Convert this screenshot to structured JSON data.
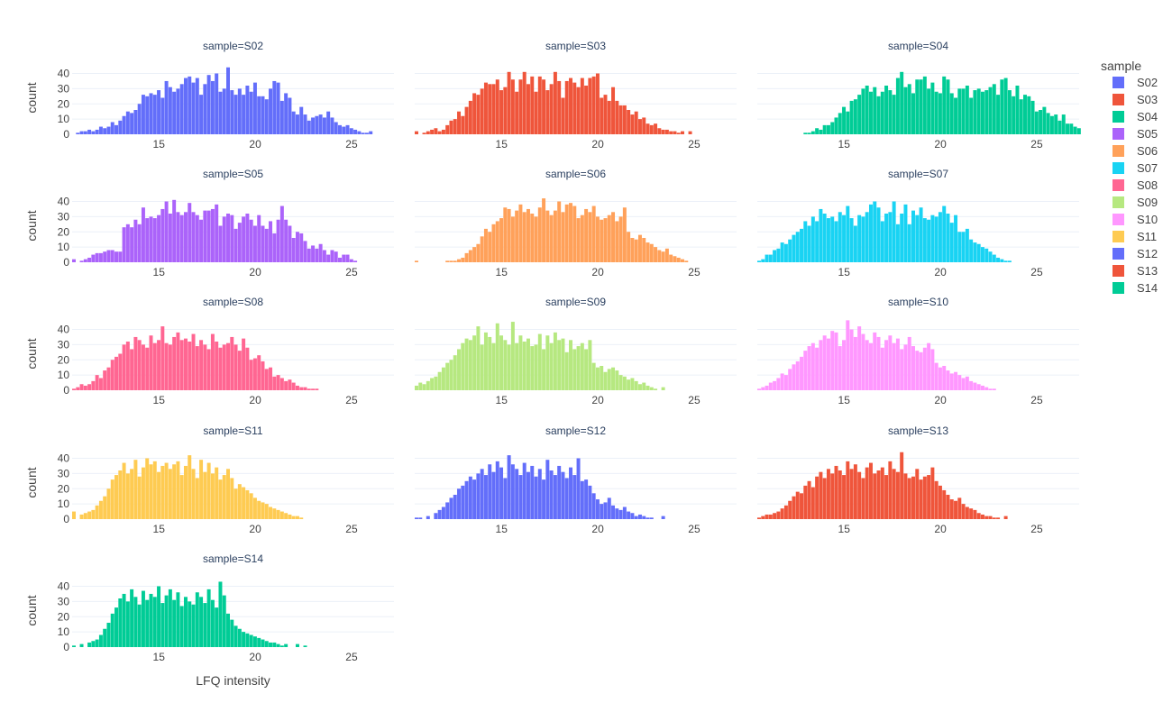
{
  "chart_data": {
    "type": "histogram",
    "facet_variable": "sample",
    "x_axis_label": "LFQ intensity",
    "y_axis_label": "count",
    "bin_start": 10.5,
    "bin_width": 0.2,
    "xlim": [
      10.5,
      27.2
    ],
    "ylim": [
      0,
      48
    ],
    "x_ticks": [
      10,
      15,
      20,
      25
    ],
    "y_ticks": [
      0,
      10,
      20,
      30,
      40
    ],
    "grid": true,
    "legend_position": "right",
    "facet_titles": [
      "sample=S02",
      "sample=S03",
      "sample=S04",
      "sample=S05",
      "sample=S06",
      "sample=S07",
      "sample=S08",
      "sample=S09",
      "sample=S10",
      "sample=S11",
      "sample=S12",
      "sample=S13",
      "sample=S14"
    ],
    "series": [
      {
        "name": "S02",
        "color": "#636efa",
        "counts": [
          0,
          1,
          2,
          2,
          3,
          2,
          3,
          5,
          4,
          5,
          8,
          6,
          9,
          12,
          15,
          14,
          16,
          20,
          26,
          25,
          27,
          26,
          29,
          24,
          35,
          31,
          28,
          30,
          33,
          37,
          38,
          34,
          37,
          26,
          33,
          39,
          35,
          40,
          28,
          30,
          44,
          29,
          26,
          30,
          26,
          32,
          28,
          34,
          25,
          25,
          23,
          30,
          35,
          34,
          22,
          27,
          24,
          15,
          13,
          18,
          13,
          9,
          11,
          12,
          13,
          11,
          15,
          11,
          8,
          6,
          5,
          6,
          4,
          3,
          2,
          1,
          1,
          2,
          0,
          0,
          0,
          0,
          0,
          0
        ],
        "x_ranges": []
      },
      {
        "name": "S03",
        "color": "#ef553b",
        "counts": [
          2,
          0,
          1,
          2,
          3,
          4,
          2,
          3,
          6,
          9,
          10,
          15,
          12,
          18,
          22,
          27,
          26,
          30,
          34,
          33,
          33,
          36,
          29,
          31,
          41,
          36,
          28,
          36,
          41,
          33,
          38,
          28,
          38,
          36,
          29,
          33,
          41,
          35,
          24,
          35,
          37,
          34,
          31,
          37,
          32,
          37,
          38,
          40,
          24,
          26,
          22,
          31,
          22,
          19,
          19,
          16,
          13,
          15,
          10,
          11,
          7,
          6,
          7,
          4,
          3,
          3,
          2,
          2,
          1,
          2,
          0,
          2,
          0,
          0,
          0,
          0,
          0,
          0,
          0,
          0,
          0,
          0,
          0,
          0
        ],
        "x_ranges": []
      },
      {
        "name": "S04",
        "color": "#00cc96",
        "counts": [
          0,
          0,
          0,
          0,
          0,
          0,
          0,
          0,
          0,
          0,
          0,
          0,
          1,
          1,
          2,
          4,
          3,
          6,
          6,
          8,
          11,
          14,
          18,
          15,
          22,
          23,
          26,
          30,
          32,
          28,
          31,
          25,
          28,
          32,
          29,
          26,
          37,
          41,
          31,
          33,
          27,
          36,
          36,
          38,
          30,
          34,
          28,
          27,
          38,
          36,
          27,
          24,
          30,
          30,
          32,
          24,
          29,
          30,
          28,
          29,
          31,
          33,
          26,
          36,
          37,
          29,
          25,
          32,
          23,
          26,
          25,
          22,
          15,
          16,
          18,
          14,
          12,
          13,
          9,
          13,
          7,
          7,
          5,
          4
        ],
        "x_ranges": []
      },
      {
        "name": "S05",
        "color": "#ab63fa",
        "counts": [
          2,
          0,
          1,
          2,
          3,
          5,
          6,
          6,
          7,
          8,
          8,
          7,
          7,
          23,
          25,
          23,
          28,
          25,
          36,
          29,
          30,
          29,
          31,
          35,
          40,
          32,
          41,
          33,
          31,
          33,
          39,
          33,
          31,
          28,
          34,
          34,
          35,
          38,
          24,
          30,
          32,
          31,
          22,
          26,
          30,
          32,
          28,
          24,
          31,
          24,
          22,
          27,
          19,
          28,
          37,
          28,
          24,
          16,
          20,
          19,
          14,
          9,
          11,
          9,
          12,
          8,
          5,
          8,
          7,
          3,
          5,
          5,
          2,
          1,
          0,
          0,
          0,
          0,
          0,
          0,
          0,
          0,
          0,
          0
        ],
        "x_ranges": []
      },
      {
        "name": "S06",
        "color": "#ffa15a",
        "counts": [
          1,
          0,
          0,
          0,
          0,
          0,
          0,
          0,
          1,
          1,
          1,
          2,
          3,
          6,
          8,
          10,
          12,
          17,
          22,
          20,
          25,
          27,
          29,
          36,
          35,
          30,
          34,
          38,
          33,
          35,
          32,
          30,
          36,
          42,
          34,
          31,
          34,
          40,
          33,
          38,
          39,
          37,
          29,
          31,
          35,
          33,
          37,
          30,
          28,
          29,
          31,
          33,
          27,
          30,
          36,
          20,
          16,
          15,
          18,
          16,
          13,
          12,
          10,
          8,
          7,
          9,
          5,
          4,
          3,
          2,
          1,
          0,
          0,
          0,
          0,
          0,
          0,
          0,
          0,
          0,
          0,
          0,
          0,
          0
        ],
        "x_ranges": []
      },
      {
        "name": "S07",
        "color": "#19d3f3",
        "counts": [
          1,
          2,
          5,
          5,
          8,
          9,
          13,
          12,
          15,
          18,
          20,
          22,
          27,
          24,
          30,
          27,
          35,
          32,
          29,
          30,
          27,
          33,
          31,
          37,
          29,
          24,
          31,
          30,
          33,
          38,
          40,
          36,
          27,
          32,
          33,
          40,
          25,
          32,
          38,
          25,
          34,
          31,
          36,
          29,
          28,
          31,
          30,
          33,
          37,
          32,
          26,
          31,
          20,
          20,
          22,
          15,
          13,
          12,
          10,
          9,
          7,
          5,
          3,
          2,
          1,
          1,
          0,
          0,
          0,
          0,
          0,
          0,
          0,
          0,
          0,
          0,
          0,
          0,
          0,
          0,
          0,
          0,
          0,
          0
        ],
        "x_ranges": []
      },
      {
        "name": "S08",
        "color": "#ff6692",
        "counts": [
          1,
          2,
          4,
          3,
          4,
          6,
          10,
          8,
          13,
          15,
          20,
          22,
          24,
          30,
          32,
          27,
          35,
          33,
          30,
          28,
          36,
          31,
          33,
          42,
          31,
          30,
          35,
          38,
          33,
          34,
          32,
          37,
          29,
          33,
          30,
          27,
          37,
          32,
          28,
          30,
          31,
          35,
          30,
          26,
          34,
          28,
          20,
          21,
          23,
          19,
          14,
          15,
          9,
          10,
          8,
          6,
          7,
          5,
          3,
          2,
          2,
          1,
          1,
          1,
          0,
          0,
          0,
          0,
          0,
          0,
          0,
          0,
          0,
          0,
          0,
          0,
          0,
          0,
          0,
          0,
          0,
          0,
          0,
          0
        ],
        "x_ranges": []
      },
      {
        "name": "S09",
        "color": "#b6e880",
        "counts": [
          3,
          5,
          4,
          6,
          8,
          9,
          12,
          15,
          18,
          20,
          23,
          27,
          31,
          34,
          33,
          36,
          42,
          30,
          38,
          35,
          31,
          44,
          36,
          33,
          30,
          45,
          31,
          36,
          32,
          34,
          29,
          30,
          37,
          27,
          36,
          31,
          38,
          33,
          34,
          25,
          33,
          27,
          29,
          31,
          27,
          33,
          18,
          15,
          16,
          12,
          14,
          15,
          13,
          10,
          9,
          7,
          8,
          6,
          4,
          5,
          3,
          2,
          1,
          0,
          2,
          0,
          0,
          0,
          0,
          0,
          0,
          0,
          0,
          0,
          0,
          0,
          0,
          0,
          0,
          0,
          0,
          0,
          0,
          0
        ],
        "x_ranges": []
      },
      {
        "name": "S10",
        "color": "#ff97ff",
        "counts": [
          1,
          2,
          3,
          5,
          6,
          8,
          11,
          10,
          14,
          17,
          19,
          22,
          26,
          29,
          31,
          28,
          33,
          36,
          34,
          39,
          38,
          29,
          33,
          46,
          40,
          35,
          42,
          37,
          33,
          31,
          38,
          35,
          28,
          33,
          36,
          31,
          34,
          27,
          30,
          35,
          29,
          26,
          25,
          28,
          31,
          27,
          18,
          15,
          16,
          13,
          11,
          12,
          10,
          8,
          9,
          6,
          5,
          4,
          3,
          2,
          1,
          1,
          0,
          0,
          0,
          0,
          0,
          0,
          0,
          0,
          0,
          0,
          0,
          0,
          0,
          0,
          0,
          0,
          0,
          0,
          0,
          0,
          0,
          0
        ],
        "x_ranges": []
      },
      {
        "name": "S11",
        "color": "#fecb52",
        "counts": [
          5,
          0,
          3,
          4,
          5,
          6,
          9,
          12,
          15,
          20,
          26,
          29,
          32,
          37,
          30,
          33,
          39,
          28,
          34,
          40,
          36,
          38,
          31,
          35,
          37,
          33,
          36,
          38,
          29,
          35,
          42,
          33,
          27,
          39,
          31,
          37,
          30,
          34,
          26,
          29,
          33,
          27,
          20,
          23,
          21,
          19,
          17,
          14,
          12,
          11,
          10,
          8,
          7,
          6,
          5,
          4,
          3,
          2,
          2,
          1,
          0,
          0,
          0,
          0,
          0,
          0,
          0,
          0,
          0,
          0,
          0,
          0,
          0,
          0,
          0,
          0,
          0,
          0,
          0,
          0,
          0,
          0,
          0,
          0
        ],
        "x_ranges": []
      },
      {
        "name": "S12",
        "color": "#636efa",
        "counts": [
          1,
          1,
          0,
          2,
          0,
          4,
          6,
          8,
          11,
          14,
          16,
          20,
          22,
          25,
          28,
          26,
          30,
          33,
          29,
          36,
          31,
          38,
          34,
          27,
          42,
          36,
          33,
          29,
          37,
          31,
          35,
          28,
          33,
          26,
          39,
          32,
          29,
          35,
          31,
          27,
          34,
          29,
          40,
          25,
          26,
          22,
          17,
          13,
          10,
          11,
          14,
          9,
          7,
          6,
          8,
          5,
          4,
          2,
          3,
          2,
          1,
          1,
          0,
          0,
          2,
          0,
          0,
          0,
          0,
          0,
          0,
          0,
          0,
          0,
          0,
          0,
          0,
          0,
          0,
          0,
          0,
          0,
          0,
          0
        ],
        "x_ranges": []
      },
      {
        "name": "S13",
        "color": "#ef553b",
        "counts": [
          1,
          2,
          3,
          3,
          4,
          5,
          7,
          9,
          12,
          15,
          18,
          17,
          22,
          25,
          21,
          28,
          31,
          27,
          33,
          30,
          35,
          32,
          29,
          38,
          33,
          36,
          31,
          27,
          34,
          37,
          30,
          32,
          34,
          29,
          38,
          33,
          31,
          44,
          30,
          27,
          28,
          33,
          26,
          28,
          29,
          34,
          25,
          22,
          19,
          16,
          13,
          12,
          14,
          10,
          8,
          7,
          6,
          4,
          3,
          2,
          2,
          1,
          1,
          0,
          2,
          0,
          0,
          0,
          0,
          0,
          0,
          0,
          0,
          0,
          0,
          0,
          0,
          0,
          0,
          0,
          0,
          0,
          0,
          0
        ],
        "x_ranges": []
      },
      {
        "name": "S14",
        "color": "#00cc96",
        "counts": [
          1,
          0,
          2,
          0,
          3,
          4,
          5,
          8,
          12,
          16,
          22,
          26,
          32,
          35,
          30,
          38,
          33,
          28,
          37,
          31,
          35,
          33,
          40,
          29,
          34,
          38,
          31,
          36,
          27,
          33,
          30,
          28,
          36,
          33,
          29,
          38,
          31,
          26,
          43,
          34,
          22,
          18,
          14,
          12,
          10,
          9,
          8,
          7,
          6,
          5,
          4,
          3,
          3,
          2,
          1,
          2,
          0,
          0,
          2,
          0,
          1,
          0,
          0,
          0,
          0,
          0,
          0,
          0,
          0,
          0,
          0,
          0,
          0,
          0,
          0,
          0,
          0,
          0,
          0,
          0,
          0,
          0,
          0,
          0
        ],
        "x_ranges": []
      }
    ]
  }
}
